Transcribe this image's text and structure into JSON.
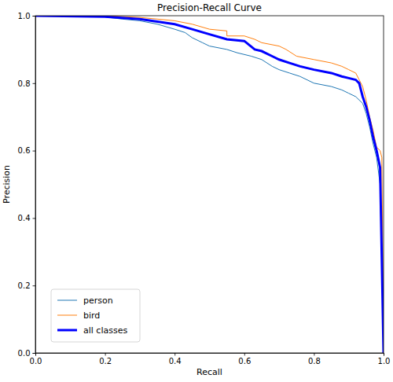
{
  "chart_data": {
    "type": "line",
    "title": "Precision-Recall Curve",
    "x_label": "Recall",
    "y_label": "Precision",
    "xlim": [
      0,
      1
    ],
    "ylim": [
      0,
      1
    ],
    "xticks": [
      {
        "value": 0,
        "label": "0.0"
      },
      0.2,
      0.4,
      0.6,
      0.8,
      {
        "value": 1,
        "label": "1.0"
      }
    ],
    "yticks": [
      {
        "value": 0,
        "label": "0.0"
      },
      0.2,
      0.4,
      0.6,
      0.8,
      {
        "value": 1,
        "label": "1.0"
      }
    ],
    "legend": "lower left",
    "grid": false,
    "series": [
      {
        "name": "person",
        "color": "#1f77b4",
        "x": [
          0,
          0.17,
          0.25,
          0.3,
          0.35,
          0.4,
          0.43,
          0.45,
          0.48,
          0.5,
          0.55,
          0.58,
          0.62,
          0.65,
          0.68,
          0.7,
          0.73,
          0.76,
          0.8,
          0.85,
          0.88,
          0.9,
          0.92,
          0.94,
          0.95,
          0.96,
          0.97,
          0.98,
          0.99,
          1.0
        ],
        "values": [
          1,
          1,
          0.99,
          0.985,
          0.975,
          0.96,
          0.95,
          0.935,
          0.92,
          0.91,
          0.9,
          0.89,
          0.88,
          0.87,
          0.85,
          0.84,
          0.83,
          0.82,
          0.8,
          0.79,
          0.78,
          0.77,
          0.76,
          0.74,
          0.71,
          0.67,
          0.62,
          0.58,
          0.5,
          0
        ]
      },
      {
        "name": "bird",
        "color": "#ff7f0e",
        "x": [
          0,
          0.2,
          0.3,
          0.4,
          0.45,
          0.5,
          0.55,
          0.55,
          0.6,
          0.63,
          0.65,
          0.7,
          0.72,
          0.75,
          0.8,
          0.85,
          0.88,
          0.9,
          0.92,
          0.93,
          0.94,
          0.95,
          0.96,
          0.97,
          0.98,
          0.99,
          0.995,
          1.0
        ],
        "values": [
          1,
          1,
          0.995,
          0.985,
          0.975,
          0.96,
          0.955,
          0.94,
          0.94,
          0.93,
          0.92,
          0.91,
          0.9,
          0.88,
          0.87,
          0.86,
          0.85,
          0.84,
          0.83,
          0.81,
          0.79,
          0.75,
          0.7,
          0.66,
          0.61,
          0.6,
          0.58,
          0
        ]
      },
      {
        "name": "all classes",
        "color": "#0000ff",
        "x": [
          0,
          0.2,
          0.3,
          0.4,
          0.45,
          0.5,
          0.55,
          0.6,
          0.63,
          0.65,
          0.68,
          0.7,
          0.73,
          0.76,
          0.8,
          0.85,
          0.88,
          0.9,
          0.92,
          0.93,
          0.94,
          0.95,
          0.96,
          0.97,
          0.98,
          0.99,
          1.0
        ],
        "values": [
          1,
          0.997,
          0.99,
          0.975,
          0.96,
          0.945,
          0.93,
          0.925,
          0.9,
          0.895,
          0.88,
          0.87,
          0.86,
          0.85,
          0.84,
          0.83,
          0.82,
          0.815,
          0.81,
          0.8,
          0.76,
          0.73,
          0.69,
          0.64,
          0.6,
          0.55,
          0
        ]
      }
    ]
  }
}
